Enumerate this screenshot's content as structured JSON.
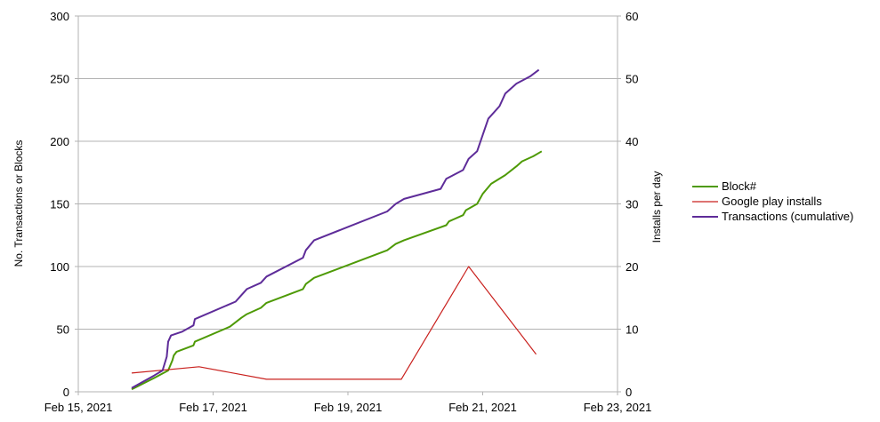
{
  "chart_data": {
    "type": "line",
    "title": "",
    "xlabel": "",
    "ylabel": "No. Transactions or Blocks",
    "y2label": "Installs per day",
    "x_ticks": [
      "Feb 15, 2021",
      "Feb 17, 2021",
      "Feb 19, 2021",
      "Feb 21, 2021",
      "Feb 23, 2021"
    ],
    "xlim": [
      "2021-02-15",
      "2021-02-23"
    ],
    "ylim": [
      0,
      300
    ],
    "y_ticks": [
      "0",
      "50",
      "100",
      "150",
      "200",
      "250",
      "300"
    ],
    "y2lim": [
      0,
      60
    ],
    "y2_ticks": [
      "0",
      "10",
      "20",
      "30",
      "40",
      "50",
      "60"
    ],
    "grid": true,
    "legend_position": "right",
    "series": [
      {
        "name": "Block#",
        "axis": "left",
        "color": "#4e9a06",
        "points": [
          [
            "2021-02-15 19:00",
            2
          ],
          [
            "2021-02-16 03:00",
            11
          ],
          [
            "2021-02-16 08:00",
            17
          ],
          [
            "2021-02-16 09:30",
            25
          ],
          [
            "2021-02-16 10:00",
            29
          ],
          [
            "2021-02-16 11:00",
            32
          ],
          [
            "2021-02-16 17:00",
            37
          ],
          [
            "2021-02-16 17:30",
            40
          ],
          [
            "2021-02-17 06:00",
            52
          ],
          [
            "2021-02-17 10:00",
            59
          ],
          [
            "2021-02-17 12:00",
            62
          ],
          [
            "2021-02-17 17:00",
            67
          ],
          [
            "2021-02-17 19:00",
            71
          ],
          [
            "2021-02-18 08:00",
            82
          ],
          [
            "2021-02-18 09:00",
            86
          ],
          [
            "2021-02-18 12:00",
            91
          ],
          [
            "2021-02-19 14:00",
            113
          ],
          [
            "2021-02-19 17:00",
            118
          ],
          [
            "2021-02-19 20:00",
            121
          ],
          [
            "2021-02-20 11:00",
            133
          ],
          [
            "2021-02-20 12:00",
            136
          ],
          [
            "2021-02-20 17:00",
            141
          ],
          [
            "2021-02-20 18:00",
            145
          ],
          [
            "2021-02-20 22:00",
            150
          ],
          [
            "2021-02-21 00:00",
            158
          ],
          [
            "2021-02-21 03:00",
            166
          ],
          [
            "2021-02-21 08:00",
            173
          ],
          [
            "2021-02-21 12:00",
            180
          ],
          [
            "2021-02-21 14:00",
            184
          ],
          [
            "2021-02-21 18:00",
            188
          ],
          [
            "2021-02-21 21:00",
            192
          ]
        ]
      },
      {
        "name": "Google play installs",
        "axis": "right",
        "color": "#c9211e",
        "points": [
          [
            "2021-02-15 19:00",
            3
          ],
          [
            "2021-02-16 19:00",
            4
          ],
          [
            "2021-02-17 19:00",
            2
          ],
          [
            "2021-02-18 19:00",
            2
          ],
          [
            "2021-02-19 19:00",
            2
          ],
          [
            "2021-02-20 19:00",
            20
          ],
          [
            "2021-02-21 19:00",
            6
          ]
        ]
      },
      {
        "name": "Transactions (cumulative)",
        "axis": "left",
        "color": "#5e2c99",
        "points": [
          [
            "2021-02-15 19:00",
            3
          ],
          [
            "2021-02-16 03:00",
            13
          ],
          [
            "2021-02-16 06:00",
            17
          ],
          [
            "2021-02-16 07:30",
            28
          ],
          [
            "2021-02-16 08:00",
            40
          ],
          [
            "2021-02-16 09:00",
            45
          ],
          [
            "2021-02-16 13:00",
            48
          ],
          [
            "2021-02-16 17:00",
            53
          ],
          [
            "2021-02-16 17:30",
            58
          ],
          [
            "2021-02-17 08:00",
            72
          ],
          [
            "2021-02-17 10:00",
            77
          ],
          [
            "2021-02-17 12:00",
            82
          ],
          [
            "2021-02-17 17:00",
            87
          ],
          [
            "2021-02-17 19:00",
            92
          ],
          [
            "2021-02-18 08:00",
            107
          ],
          [
            "2021-02-18 09:00",
            113
          ],
          [
            "2021-02-18 12:00",
            121
          ],
          [
            "2021-02-19 14:00",
            144
          ],
          [
            "2021-02-19 17:00",
            150
          ],
          [
            "2021-02-19 20:00",
            154
          ],
          [
            "2021-02-20 09:00",
            162
          ],
          [
            "2021-02-20 11:00",
            170
          ],
          [
            "2021-02-20 17:00",
            177
          ],
          [
            "2021-02-20 19:00",
            186
          ],
          [
            "2021-02-20 22:00",
            192
          ],
          [
            "2021-02-21 00:00",
            205
          ],
          [
            "2021-02-21 02:00",
            218
          ],
          [
            "2021-02-21 06:00",
            228
          ],
          [
            "2021-02-21 08:00",
            238
          ],
          [
            "2021-02-21 12:00",
            246
          ],
          [
            "2021-02-21 17:00",
            252
          ],
          [
            "2021-02-21 20:00",
            257
          ]
        ]
      }
    ]
  }
}
